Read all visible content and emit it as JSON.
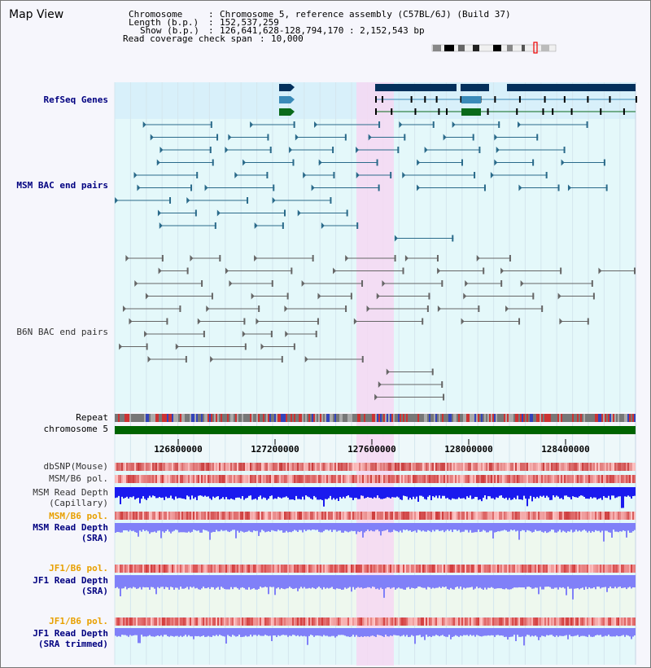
{
  "title": "Map View",
  "info": {
    "chromosome_label": "Chromosome",
    "chromosome_value": "Chromosome 5, reference assembly (C57BL/6J) (Build 37)",
    "length_label": "Length (b.p.)",
    "length_value": "152,537,259",
    "show_label": "Show (b.p.)",
    "show_value": "126,641,628-128,794,170 : 2,152,543 bp",
    "coverage_label": "Read coverage check span",
    "coverage_value": "10,000"
  },
  "tracks": {
    "refseq": "RefSeq Genes",
    "msm_bac": "MSM BAC end pairs",
    "b6n_bac": "B6N BAC end pairs",
    "repeat": "Repeat",
    "chromosome": "chromosome 5",
    "dbsnp": "dbSNP(Mouse)",
    "msm_b6_pol_1": "MSM/B6 pol.",
    "msm_read_depth_cap_1": "MSM Read Depth",
    "msm_read_depth_cap_2": "(Capillary)",
    "msm_b6_pol_2": "MSM/B6 pol.",
    "msm_read_depth_sra_1": "MSM Read Depth",
    "msm_read_depth_sra_2": "(SRA)",
    "jf1_b6_pol_1": "JF1/B6 pol.",
    "jf1_read_depth_sra_1": "JF1 Read Depth",
    "jf1_read_depth_sra_2": "(SRA)",
    "jf1_b6_pol_2": "JF1/B6 pol.",
    "jf1_read_depth_trim_1": "JF1 Read Depth",
    "jf1_read_depth_trim_2": "(SRA trimmed)"
  },
  "axis_ticks": [
    "126800000",
    "127200000",
    "127600000",
    "128000000",
    "128400000"
  ],
  "colors": {
    "highlight": "#f6d8f2",
    "refseq_bg": "#d8f0fa",
    "track_bg": "#e4f8fa",
    "gene_dark": "#04305c",
    "gene_mid": "#3a8ab8",
    "gene_green": "#0a6a1a",
    "chrom_green": "#006400",
    "depth_blue": "#1a1aee",
    "depth_light": "#8080f8",
    "msm_line": "#2a6a8a",
    "b6n_line": "#666666"
  }
}
